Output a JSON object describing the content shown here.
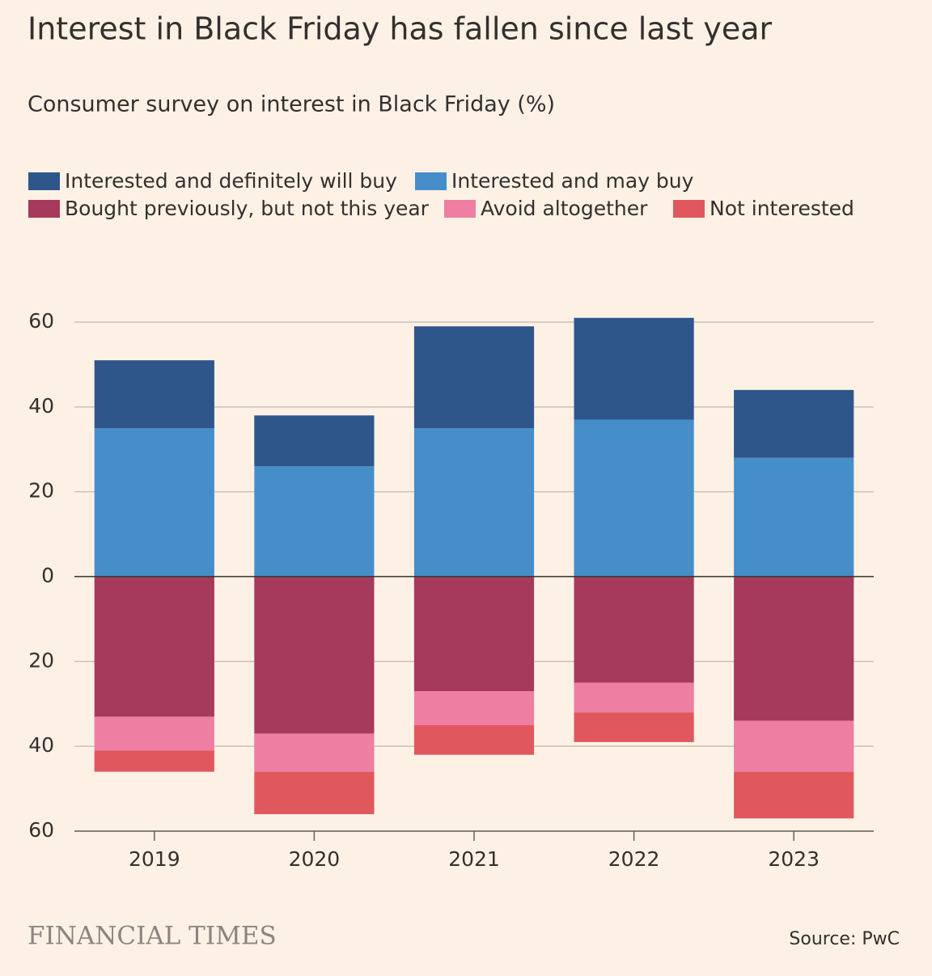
{
  "chart_data": {
    "type": "bar",
    "stacked": true,
    "title": "Interest in Black Friday has fallen since last year",
    "subtitle": "Consumer survey on interest in Black Friday (%)",
    "categories": [
      "2019",
      "2020",
      "2021",
      "2022",
      "2023"
    ],
    "series": [
      {
        "name": "Interested and definitely will buy",
        "color": "#2e568b",
        "values": [
          16,
          12,
          24,
          24,
          16
        ]
      },
      {
        "name": "Interested and may buy",
        "color": "#468ec9",
        "values": [
          35,
          26,
          35,
          37,
          28
        ]
      },
      {
        "name": "Bought previously, but not this year",
        "color": "#a63a5c",
        "values": [
          -33,
          -37,
          -27,
          -25,
          -34
        ]
      },
      {
        "name": "Avoid altogether",
        "color": "#ee7ea2",
        "values": [
          -8,
          -9,
          -8,
          -7,
          -12
        ]
      },
      {
        "name": "Not interested",
        "color": "#e0585d",
        "values": [
          -5,
          -10,
          -7,
          -7,
          -11
        ]
      }
    ],
    "ylim": [
      -60,
      60
    ],
    "yticks": [
      {
        "value": -60,
        "label": "60"
      },
      {
        "value": -40,
        "label": "40"
      },
      {
        "value": -20,
        "label": "20"
      },
      0,
      20,
      40,
      60
    ],
    "grid": true,
    "legend": "top",
    "brand": "FINANCIAL TIMES",
    "source": "Source: PwC"
  }
}
